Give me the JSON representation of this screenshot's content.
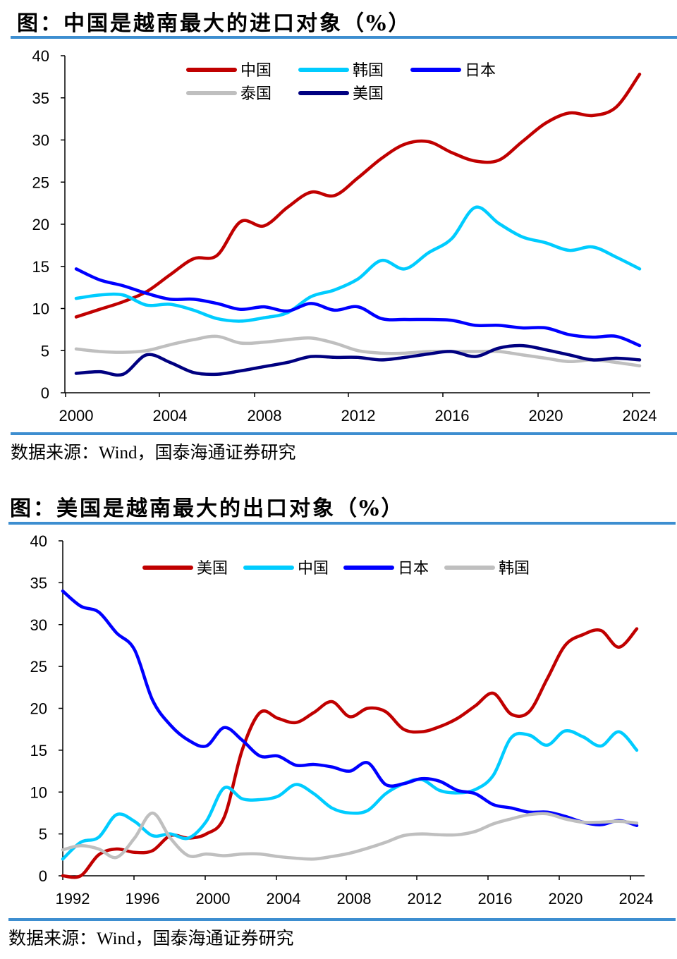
{
  "charts": [
    {
      "title": "图：中国是越南最大的进口对象（%）",
      "source": "数据来源：Wind，国泰海通证券研究"
    },
    {
      "title": "图：美国是越南最大的出口对象（%）",
      "source": "数据来源：Wind，国泰海通证券研究"
    }
  ],
  "chart_data": [
    {
      "type": "line",
      "title": "图：中国是越南最大的进口对象（%）",
      "xlabel": "",
      "ylabel": "",
      "x": [
        2000,
        2001,
        2002,
        2003,
        2004,
        2005,
        2006,
        2007,
        2008,
        2009,
        2010,
        2011,
        2012,
        2013,
        2014,
        2015,
        2016,
        2017,
        2018,
        2019,
        2020,
        2021,
        2022,
        2023,
        2024
      ],
      "x_ticks": [
        "2000",
        "2004",
        "2008",
        "2012",
        "2016",
        "2020",
        "2024"
      ],
      "y_ticks": [
        "0",
        "5",
        "10",
        "15",
        "20",
        "25",
        "30",
        "35",
        "40"
      ],
      "ylim": [
        0,
        40
      ],
      "grid": false,
      "legend_position": "top",
      "series": [
        {
          "name": "中国",
          "color": "#c00000",
          "values": [
            9.0,
            9.9,
            10.8,
            12.0,
            14.0,
            15.9,
            16.3,
            20.3,
            19.8,
            22.0,
            23.8,
            23.4,
            25.5,
            27.8,
            29.5,
            29.8,
            28.5,
            27.5,
            27.6,
            29.8,
            32.0,
            33.2,
            32.9,
            33.9,
            37.8
          ]
        },
        {
          "name": "韩国",
          "color": "#00ccff",
          "values": [
            11.2,
            11.6,
            11.6,
            10.4,
            10.5,
            9.8,
            8.8,
            8.5,
            8.9,
            9.5,
            11.4,
            12.2,
            13.5,
            15.7,
            14.7,
            16.6,
            18.3,
            22.0,
            20.1,
            18.5,
            17.8,
            16.9,
            17.3,
            16.1,
            14.7
          ]
        },
        {
          "name": "日本",
          "color": "#0000ff",
          "values": [
            14.7,
            13.4,
            12.7,
            11.8,
            11.1,
            11.1,
            10.6,
            9.9,
            10.2,
            9.7,
            10.6,
            9.8,
            10.2,
            8.8,
            8.7,
            8.7,
            8.6,
            8.0,
            8.0,
            7.7,
            7.7,
            6.9,
            6.6,
            6.7,
            5.6
          ]
        },
        {
          "name": "泰国",
          "color": "#bfbfbf",
          "values": [
            5.2,
            4.9,
            4.8,
            5.0,
            5.7,
            6.3,
            6.7,
            5.9,
            6.0,
            6.3,
            6.5,
            5.9,
            5.0,
            4.7,
            4.7,
            4.9,
            4.9,
            4.9,
            4.9,
            4.5,
            4.1,
            3.7,
            3.9,
            3.6,
            3.2
          ]
        },
        {
          "name": "美国",
          "color": "#000080",
          "values": [
            2.3,
            2.5,
            2.2,
            4.5,
            3.6,
            2.4,
            2.2,
            2.6,
            3.1,
            3.6,
            4.3,
            4.2,
            4.2,
            3.9,
            4.2,
            4.6,
            4.9,
            4.3,
            5.3,
            5.6,
            5.1,
            4.5,
            3.9,
            4.1,
            3.9
          ]
        }
      ]
    },
    {
      "type": "line",
      "title": "图：美国是越南最大的出口对象（%）",
      "xlabel": "",
      "ylabel": "",
      "x": [
        1992,
        1993,
        1994,
        1995,
        1996,
        1997,
        1998,
        1999,
        2000,
        2001,
        2002,
        2003,
        2004,
        2005,
        2006,
        2007,
        2008,
        2009,
        2010,
        2011,
        2012,
        2013,
        2014,
        2015,
        2016,
        2017,
        2018,
        2019,
        2020,
        2021,
        2022,
        2023,
        2024
      ],
      "x_ticks": [
        "1992",
        "1996",
        "2000",
        "2004",
        "2008",
        "2012",
        "2016",
        "2020",
        "2024"
      ],
      "y_ticks": [
        "0",
        "5",
        "10",
        "15",
        "20",
        "25",
        "30",
        "35",
        "40"
      ],
      "ylim": [
        0,
        40
      ],
      "grid": false,
      "legend_position": "top",
      "series": [
        {
          "name": "美国",
          "color": "#c00000",
          "values": [
            0,
            0,
            2.5,
            3.2,
            2.8,
            3.0,
            4.8,
            4.5,
            5.0,
            7.0,
            15.0,
            19.5,
            18.8,
            18.3,
            19.5,
            20.8,
            19.0,
            20.0,
            19.6,
            17.5,
            17.2,
            17.8,
            18.8,
            20.3,
            21.8,
            19.3,
            19.6,
            23.5,
            27.5,
            28.8,
            29.3,
            27.3,
            29.5
          ]
        },
        {
          "name": "中国",
          "color": "#00ccff",
          "values": [
            2.0,
            4.0,
            4.6,
            7.3,
            6.5,
            4.8,
            5.0,
            4.5,
            6.5,
            10.5,
            9.2,
            9.1,
            9.5,
            10.9,
            9.8,
            8.1,
            7.5,
            7.8,
            9.8,
            11.0,
            11.5,
            10.2,
            9.9,
            10.3,
            12.0,
            16.5,
            16.8,
            15.6,
            17.3,
            16.6,
            15.5,
            17.2,
            15.0
          ]
        },
        {
          "name": "日本",
          "color": "#0000ff",
          "values": [
            34.0,
            32.2,
            31.5,
            29.0,
            27.0,
            21.0,
            18.0,
            16.2,
            15.5,
            17.7,
            16.2,
            14.3,
            14.3,
            13.2,
            13.3,
            13.0,
            12.5,
            13.5,
            10.9,
            11.0,
            11.6,
            11.3,
            10.2,
            9.8,
            8.5,
            8.1,
            7.6,
            7.6,
            7.1,
            6.4,
            6.1,
            6.6,
            6.0
          ]
        },
        {
          "name": "韩国",
          "color": "#bfbfbf",
          "values": [
            3.1,
            3.6,
            3.2,
            2.2,
            4.5,
            7.5,
            4.5,
            2.4,
            2.6,
            2.4,
            2.6,
            2.6,
            2.3,
            2.1,
            2.0,
            2.3,
            2.7,
            3.3,
            4.0,
            4.8,
            5.0,
            4.9,
            4.9,
            5.3,
            6.2,
            6.8,
            7.3,
            7.4,
            6.8,
            6.4,
            6.4,
            6.5,
            6.3
          ]
        }
      ]
    }
  ]
}
